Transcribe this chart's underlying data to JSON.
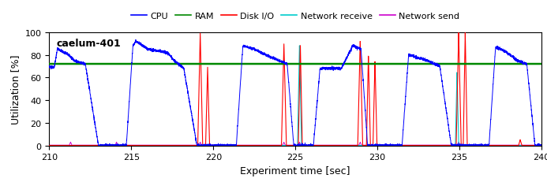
{
  "title": "caelum-401",
  "xlabel": "Experiment time [sec]",
  "ylabel": "Utilization [%]",
  "xlim": [
    210,
    240
  ],
  "ylim": [
    0,
    100
  ],
  "xticks": [
    210,
    215,
    220,
    225,
    230,
    235,
    240
  ],
  "yticks": [
    0,
    20,
    40,
    60,
    80,
    100
  ],
  "ram_level": 72.0,
  "colors": {
    "cpu": "#0000ff",
    "ram": "#008800",
    "disk": "#ff0000",
    "net_recv": "#00cccc",
    "net_send": "#cc00cc"
  },
  "legend_labels": [
    "CPU",
    "RAM",
    "Disk I/O",
    "Network receive",
    "Network send"
  ],
  "figsize": [
    6.93,
    2.32
  ],
  "dpi": 100
}
